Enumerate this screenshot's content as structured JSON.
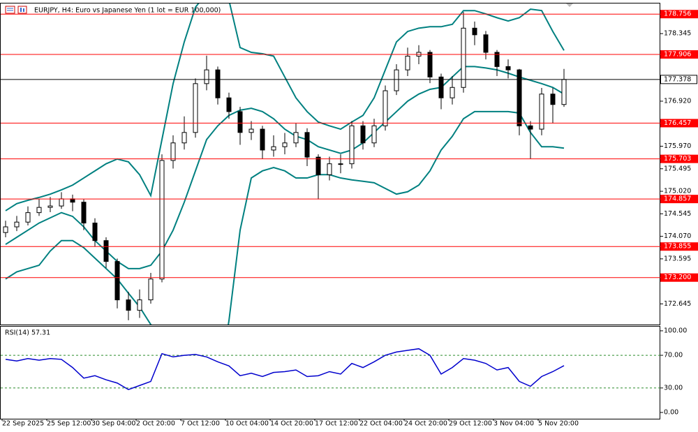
{
  "chart_data": {
    "type": "candlestick",
    "title": "EURJPY, H4:  Euro vs Japanese Yen (1 lot = EUR 100,000)",
    "x_labels": [
      "22 Sep 2025",
      "25 Sep 12:00",
      "30 Sep 04:00",
      "2 Oct 20:00",
      "7 Oct 12:00",
      "10 Oct 04:00",
      "14 Oct 20:00",
      "17 Oct 12:00",
      "22 Oct 04:00",
      "24 Oct 20:00",
      "29 Oct 12:00",
      "3 Nov 04:00",
      "5 Nov 20:00"
    ],
    "open": [
      174.15,
      174.27,
      174.37,
      174.57,
      174.68,
      174.71,
      174.86,
      174.79,
      174.35,
      173.98,
      173.54,
      172.73,
      172.51,
      172.73,
      173.17,
      175.67,
      176.04,
      176.26,
      177.29,
      177.58,
      176.99,
      176.7,
      176.26,
      176.33,
      175.89,
      175.96,
      176.04,
      176.26,
      175.74,
      175.37,
      175.6,
      175.6,
      176.4,
      176.04,
      176.4,
      177.14,
      177.58,
      177.87,
      177.95,
      177.43,
      176.99,
      177.21,
      178.46,
      178.32,
      177.95,
      177.65,
      177.58,
      176.4,
      176.33,
      177.07,
      176.85
    ],
    "high": [
      174.4,
      174.5,
      174.7,
      174.85,
      174.9,
      175.0,
      174.95,
      174.85,
      174.45,
      174.05,
      173.6,
      172.9,
      172.95,
      173.3,
      175.8,
      176.2,
      176.6,
      177.4,
      177.88,
      177.65,
      177.1,
      176.8,
      176.5,
      176.4,
      176.2,
      176.25,
      176.45,
      176.35,
      175.8,
      175.75,
      175.8,
      176.5,
      176.5,
      176.55,
      177.25,
      177.7,
      178.05,
      178.1,
      178.0,
      177.5,
      177.45,
      178.8,
      178.6,
      178.4,
      178.0,
      177.8,
      177.6,
      176.5,
      177.2,
      177.2,
      177.6
    ],
    "low": [
      174.05,
      174.18,
      174.3,
      174.5,
      174.58,
      174.65,
      174.6,
      174.2,
      173.85,
      173.4,
      172.55,
      172.3,
      172.35,
      172.65,
      173.1,
      175.5,
      175.9,
      176.15,
      177.15,
      176.85,
      176.55,
      176.0,
      176.1,
      175.7,
      175.75,
      175.8,
      175.95,
      175.55,
      174.85,
      175.25,
      175.4,
      175.5,
      175.9,
      175.95,
      176.3,
      177.05,
      177.45,
      177.7,
      177.3,
      176.75,
      176.85,
      177.1,
      178.1,
      177.8,
      177.45,
      177.4,
      176.2,
      175.7,
      176.2,
      176.45,
      176.8
    ],
    "close": [
      174.27,
      174.37,
      174.57,
      174.68,
      174.71,
      174.86,
      174.79,
      174.35,
      173.98,
      173.54,
      172.73,
      172.51,
      172.73,
      173.17,
      175.67,
      176.04,
      176.26,
      177.29,
      177.58,
      176.99,
      176.7,
      176.26,
      176.33,
      175.89,
      175.96,
      176.04,
      176.26,
      175.74,
      175.37,
      175.6,
      175.6,
      176.4,
      176.04,
      176.4,
      177.14,
      177.58,
      177.87,
      177.95,
      177.43,
      176.99,
      177.21,
      178.46,
      178.32,
      177.95,
      177.65,
      177.58,
      176.4,
      176.33,
      177.07,
      176.85,
      177.378
    ],
    "color_up": "#ffffff",
    "color_down": "#000000",
    "bands": {
      "color": "#008080",
      "series": [
        {
          "values": [
            174.61,
            174.76,
            174.83,
            174.89,
            174.96,
            175.05,
            175.15,
            175.3,
            175.45,
            175.6,
            175.7,
            175.64,
            175.37,
            174.93,
            176.11,
            177.29,
            178.17,
            178.9,
            179.2,
            179.42,
            179.05,
            178.05,
            177.95,
            177.92,
            177.87,
            177.43,
            176.99,
            176.7,
            176.48,
            176.4,
            176.33,
            176.48,
            176.62,
            176.99,
            177.58,
            178.17,
            178.39,
            178.46,
            178.49,
            178.49,
            178.54,
            178.83,
            178.83,
            178.76,
            178.68,
            178.61,
            178.68,
            178.86,
            178.83,
            178.39,
            177.99
          ]
        },
        {
          "values": [
            173.9,
            174.05,
            174.2,
            174.35,
            174.46,
            174.57,
            174.49,
            174.27,
            173.98,
            173.76,
            173.54,
            173.39,
            173.39,
            173.46,
            173.76,
            174.2,
            174.79,
            175.45,
            176.11,
            176.4,
            176.62,
            176.73,
            176.77,
            176.7,
            176.55,
            176.33,
            176.18,
            176.11,
            175.96,
            175.89,
            175.82,
            175.89,
            176.04,
            176.26,
            176.48,
            176.7,
            176.92,
            177.07,
            177.17,
            177.21,
            177.43,
            177.65,
            177.65,
            177.62,
            177.58,
            177.51,
            177.43,
            177.36,
            177.29,
            177.21,
            177.07
          ]
        },
        {
          "values": [
            173.17,
            173.32,
            173.39,
            173.46,
            173.76,
            173.98,
            173.98,
            173.83,
            173.61,
            173.39,
            173.17,
            172.87,
            172.58,
            172.21,
            171.99,
            171.4,
            170.52,
            169.93,
            169.64,
            170.82,
            172.29,
            174.2,
            175.3,
            175.45,
            175.52,
            175.45,
            175.3,
            175.3,
            175.37,
            175.37,
            175.3,
            175.26,
            175.23,
            175.2,
            175.08,
            174.96,
            175.01,
            175.15,
            175.45,
            175.89,
            176.18,
            176.55,
            176.7,
            176.7,
            176.7,
            176.7,
            176.67,
            176.26,
            175.96,
            175.96,
            175.93
          ]
        }
      ]
    },
    "ylim": [
      172.21,
      178.98
    ],
    "yticks": [
      178.345,
      {
        "value": 176.92,
        "label": "176.920"
      },
      {
        "value": 175.97,
        "label": "175.970"
      },
      175.495,
      {
        "value": 175.02,
        "label": "175.020"
      },
      174.545,
      {
        "value": 174.07,
        "label": "174.070"
      },
      173.595,
      172.645
    ],
    "levels": {
      "color": "#ff0000",
      "values": [
        178.756,
        177.906,
        176.457,
        175.703,
        174.857,
        173.855,
        {
          "value": 173.2,
          "label": "173.200"
        }
      ]
    },
    "price": 177.378,
    "rsi": {
      "title": "RSI(14) 57.31",
      "color": "#0000cd",
      "values": [
        65,
        63,
        66,
        64,
        66,
        65,
        55,
        42,
        45,
        40,
        36,
        28,
        33,
        38,
        72,
        68,
        70,
        71,
        68,
        62,
        57,
        45,
        48,
        44,
        49,
        50,
        52,
        44,
        45,
        50,
        47,
        60,
        55,
        62,
        70,
        74,
        76,
        78,
        70,
        47,
        55,
        66,
        64,
        60,
        52,
        55,
        38,
        32,
        44,
        50,
        57.31
      ],
      "ylim": [
        -7.7,
        105.1
      ],
      "yticks": [
        {
          "value": 100,
          "label": "100.00"
        },
        {
          "value": 70,
          "label": "70.00"
        },
        {
          "value": 30,
          "label": "30.00"
        },
        {
          "value": 0,
          "label": "0.00"
        }
      ]
    }
  }
}
